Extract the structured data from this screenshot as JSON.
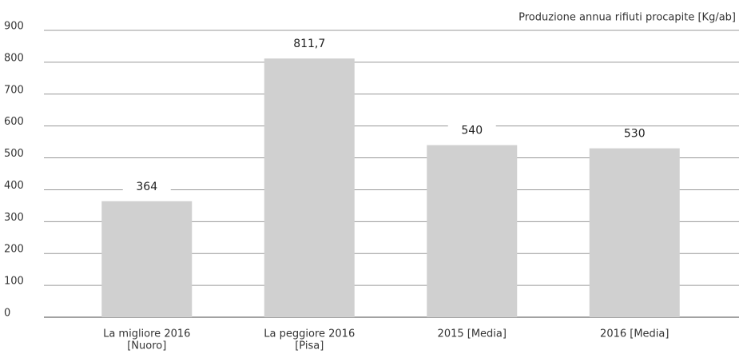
{
  "chart_data": {
    "type": "bar",
    "axis_title": "Produzione annua rifiuti procapite [Kg/ab]",
    "categories": [
      [
        "La migliore 2016",
        "[Nuoro]"
      ],
      [
        "La peggiore 2016",
        "[Pisa]"
      ],
      [
        "2015 [Media]"
      ],
      [
        "2016 [Media]"
      ]
    ],
    "values": [
      364,
      811.7,
      540,
      530
    ],
    "value_labels": [
      "364",
      "811,7",
      "540",
      "530"
    ],
    "color": "#d0d0d0",
    "ylim": [
      0,
      900
    ],
    "yticks": [
      0,
      100,
      200,
      300,
      400,
      500,
      600,
      700,
      800,
      900
    ],
    "grid": true
  }
}
